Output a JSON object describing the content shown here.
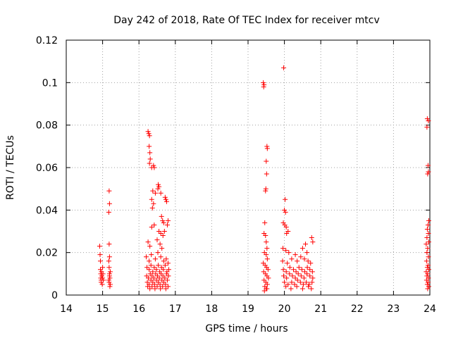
{
  "chart_data": {
    "type": "scatter",
    "title": "Day 242 of 2018, Rate Of TEC Index for receiver mtcv",
    "xlabel": "GPS time / hours",
    "ylabel": "ROTI / TECUs",
    "xlim": [
      14,
      24
    ],
    "ylim": [
      0,
      0.12
    ],
    "x_ticks": [
      "14",
      "15",
      "16",
      "17",
      "18",
      "19",
      "20",
      "21",
      "22",
      "23",
      "24"
    ],
    "y_ticks": [
      "0",
      "0.02",
      "0.04",
      "0.06",
      "0.08",
      "0.1",
      "0.12"
    ],
    "grid": true,
    "marker": "+",
    "colors": {
      "points": "#ff0000",
      "grid": "#a0a0a0",
      "axes": "#000000"
    },
    "series": [
      {
        "values": [
          [
            14.92,
            0.023
          ],
          [
            14.93,
            0.019
          ],
          [
            14.94,
            0.016
          ],
          [
            14.94,
            0.012
          ],
          [
            14.95,
            0.01
          ],
          [
            14.95,
            0.008
          ],
          [
            14.96,
            0.007
          ],
          [
            14.96,
            0.006
          ],
          [
            14.97,
            0.011
          ],
          [
            14.98,
            0.009
          ],
          [
            14.99,
            0.005
          ],
          [
            15.0,
            0.008
          ],
          [
            15.0,
            0.013
          ],
          [
            15.01,
            0.01
          ],
          [
            15.02,
            0.007
          ],
          [
            15.18,
            0.049
          ],
          [
            15.19,
            0.043
          ],
          [
            15.17,
            0.039
          ],
          [
            15.18,
            0.024
          ],
          [
            15.19,
            0.018
          ],
          [
            15.17,
            0.016
          ],
          [
            15.18,
            0.013
          ],
          [
            15.19,
            0.01
          ],
          [
            15.2,
            0.008
          ],
          [
            15.17,
            0.007
          ],
          [
            15.18,
            0.006
          ],
          [
            15.21,
            0.005
          ],
          [
            15.2,
            0.004
          ],
          [
            15.19,
            0.009
          ],
          [
            15.21,
            0.011
          ],
          [
            16.25,
            0.077
          ],
          [
            16.27,
            0.076
          ],
          [
            16.29,
            0.075
          ],
          [
            16.28,
            0.07
          ],
          [
            16.3,
            0.067
          ],
          [
            16.31,
            0.064
          ],
          [
            16.29,
            0.062
          ],
          [
            16.35,
            0.06
          ],
          [
            16.4,
            0.061
          ],
          [
            16.42,
            0.06
          ],
          [
            16.38,
            0.049
          ],
          [
            16.45,
            0.048
          ],
          [
            16.52,
            0.05
          ],
          [
            16.55,
            0.051
          ],
          [
            16.53,
            0.052
          ],
          [
            16.6,
            0.048
          ],
          [
            16.35,
            0.045
          ],
          [
            16.4,
            0.043
          ],
          [
            16.37,
            0.041
          ],
          [
            16.72,
            0.046
          ],
          [
            16.74,
            0.045
          ],
          [
            16.76,
            0.044
          ],
          [
            16.8,
            0.035
          ],
          [
            16.78,
            0.033
          ],
          [
            16.62,
            0.037
          ],
          [
            16.65,
            0.035
          ],
          [
            16.68,
            0.034
          ],
          [
            16.35,
            0.032
          ],
          [
            16.42,
            0.033
          ],
          [
            16.55,
            0.03
          ],
          [
            16.6,
            0.029
          ],
          [
            16.66,
            0.028
          ],
          [
            16.7,
            0.03
          ],
          [
            16.25,
            0.025
          ],
          [
            16.3,
            0.023
          ],
          [
            16.5,
            0.026
          ],
          [
            16.58,
            0.024
          ],
          [
            16.63,
            0.022
          ],
          [
            16.2,
            0.018
          ],
          [
            16.28,
            0.016
          ],
          [
            16.34,
            0.019
          ],
          [
            16.45,
            0.017
          ],
          [
            16.52,
            0.02
          ],
          [
            16.6,
            0.018
          ],
          [
            16.68,
            0.016
          ],
          [
            16.75,
            0.017
          ],
          [
            16.8,
            0.015
          ],
          [
            16.22,
            0.013
          ],
          [
            16.28,
            0.012
          ],
          [
            16.33,
            0.014
          ],
          [
            16.38,
            0.011
          ],
          [
            16.42,
            0.013
          ],
          [
            16.48,
            0.012
          ],
          [
            16.53,
            0.014
          ],
          [
            16.57,
            0.011
          ],
          [
            16.62,
            0.013
          ],
          [
            16.67,
            0.012
          ],
          [
            16.72,
            0.014
          ],
          [
            16.77,
            0.011
          ],
          [
            16.82,
            0.012
          ],
          [
            16.21,
            0.009
          ],
          [
            16.26,
            0.008
          ],
          [
            16.31,
            0.01
          ],
          [
            16.36,
            0.009
          ],
          [
            16.41,
            0.008
          ],
          [
            16.46,
            0.01
          ],
          [
            16.51,
            0.009
          ],
          [
            16.56,
            0.008
          ],
          [
            16.61,
            0.01
          ],
          [
            16.66,
            0.009
          ],
          [
            16.71,
            0.008
          ],
          [
            16.76,
            0.01
          ],
          [
            16.81,
            0.009
          ],
          [
            16.23,
            0.006
          ],
          [
            16.28,
            0.005
          ],
          [
            16.33,
            0.007
          ],
          [
            16.38,
            0.006
          ],
          [
            16.43,
            0.005
          ],
          [
            16.48,
            0.007
          ],
          [
            16.53,
            0.006
          ],
          [
            16.58,
            0.005
          ],
          [
            16.63,
            0.007
          ],
          [
            16.68,
            0.006
          ],
          [
            16.73,
            0.005
          ],
          [
            16.78,
            0.007
          ],
          [
            16.24,
            0.004
          ],
          [
            16.3,
            0.003
          ],
          [
            16.36,
            0.004
          ],
          [
            16.44,
            0.003
          ],
          [
            16.5,
            0.004
          ],
          [
            16.59,
            0.003
          ],
          [
            16.65,
            0.004
          ],
          [
            16.74,
            0.003
          ],
          [
            16.8,
            0.004
          ],
          [
            19.42,
            0.1
          ],
          [
            19.44,
            0.099
          ],
          [
            19.43,
            0.098
          ],
          [
            19.52,
            0.07
          ],
          [
            19.53,
            0.069
          ],
          [
            19.5,
            0.063
          ],
          [
            19.51,
            0.057
          ],
          [
            19.49,
            0.05
          ],
          [
            19.48,
            0.049
          ],
          [
            19.46,
            0.034
          ],
          [
            19.44,
            0.029
          ],
          [
            19.48,
            0.028
          ],
          [
            19.5,
            0.025
          ],
          [
            19.52,
            0.022
          ],
          [
            19.45,
            0.02
          ],
          [
            19.5,
            0.019
          ],
          [
            19.53,
            0.017
          ],
          [
            19.42,
            0.015
          ],
          [
            19.47,
            0.014
          ],
          [
            19.51,
            0.013
          ],
          [
            19.55,
            0.012
          ],
          [
            19.43,
            0.011
          ],
          [
            19.48,
            0.01
          ],
          [
            19.52,
            0.009
          ],
          [
            19.56,
            0.008
          ],
          [
            19.44,
            0.007
          ],
          [
            19.49,
            0.006
          ],
          [
            19.53,
            0.005
          ],
          [
            19.46,
            0.004
          ],
          [
            19.5,
            0.003
          ],
          [
            19.45,
            0.002
          ],
          [
            19.52,
            0.003
          ],
          [
            19.98,
            0.107
          ],
          [
            20.02,
            0.045
          ],
          [
            20.0,
            0.04
          ],
          [
            20.03,
            0.039
          ],
          [
            19.97,
            0.034
          ],
          [
            20.01,
            0.033
          ],
          [
            20.05,
            0.032
          ],
          [
            20.06,
            0.029
          ],
          [
            20.1,
            0.03
          ],
          [
            19.96,
            0.022
          ],
          [
            20.04,
            0.021
          ],
          [
            20.12,
            0.02
          ],
          [
            20.3,
            0.019
          ],
          [
            20.5,
            0.022
          ],
          [
            20.58,
            0.024
          ],
          [
            20.62,
            0.02
          ],
          [
            20.75,
            0.027
          ],
          [
            20.78,
            0.025
          ],
          [
            19.95,
            0.016
          ],
          [
            20.08,
            0.015
          ],
          [
            20.2,
            0.017
          ],
          [
            20.35,
            0.016
          ],
          [
            20.45,
            0.018
          ],
          [
            20.55,
            0.017
          ],
          [
            20.65,
            0.016
          ],
          [
            20.72,
            0.015
          ],
          [
            19.97,
            0.012
          ],
          [
            20.05,
            0.011
          ],
          [
            20.15,
            0.013
          ],
          [
            20.25,
            0.012
          ],
          [
            20.32,
            0.011
          ],
          [
            20.4,
            0.013
          ],
          [
            20.48,
            0.012
          ],
          [
            20.56,
            0.011
          ],
          [
            20.63,
            0.013
          ],
          [
            20.7,
            0.012
          ],
          [
            20.77,
            0.011
          ],
          [
            19.98,
            0.009
          ],
          [
            20.06,
            0.008
          ],
          [
            20.14,
            0.01
          ],
          [
            20.22,
            0.009
          ],
          [
            20.3,
            0.008
          ],
          [
            20.38,
            0.01
          ],
          [
            20.46,
            0.009
          ],
          [
            20.54,
            0.008
          ],
          [
            20.62,
            0.01
          ],
          [
            20.7,
            0.009
          ],
          [
            20.78,
            0.008
          ],
          [
            20.0,
            0.006
          ],
          [
            20.1,
            0.005
          ],
          [
            20.2,
            0.006
          ],
          [
            20.28,
            0.005
          ],
          [
            20.36,
            0.007
          ],
          [
            20.44,
            0.006
          ],
          [
            20.52,
            0.005
          ],
          [
            20.6,
            0.006
          ],
          [
            20.68,
            0.005
          ],
          [
            20.76,
            0.006
          ],
          [
            20.04,
            0.004
          ],
          [
            20.18,
            0.003
          ],
          [
            20.34,
            0.004
          ],
          [
            20.5,
            0.003
          ],
          [
            20.66,
            0.004
          ],
          [
            20.74,
            0.003
          ],
          [
            23.93,
            0.083
          ],
          [
            23.96,
            0.082
          ],
          [
            23.92,
            0.079
          ],
          [
            23.95,
            0.061
          ],
          [
            23.96,
            0.058
          ],
          [
            23.94,
            0.057
          ],
          [
            23.97,
            0.035
          ],
          [
            23.95,
            0.033
          ],
          [
            23.93,
            0.031
          ],
          [
            23.96,
            0.029
          ],
          [
            23.92,
            0.027
          ],
          [
            23.97,
            0.025
          ],
          [
            23.9,
            0.024
          ],
          [
            23.94,
            0.022
          ],
          [
            23.92,
            0.02
          ],
          [
            23.96,
            0.018
          ],
          [
            23.91,
            0.016
          ],
          [
            23.95,
            0.014
          ],
          [
            23.93,
            0.013
          ],
          [
            23.97,
            0.012
          ],
          [
            23.9,
            0.011
          ],
          [
            23.94,
            0.01
          ],
          [
            23.92,
            0.009
          ],
          [
            23.96,
            0.008
          ],
          [
            23.91,
            0.007
          ],
          [
            23.95,
            0.006
          ],
          [
            23.93,
            0.005
          ],
          [
            23.97,
            0.004
          ],
          [
            23.94,
            0.003
          ]
        ]
      }
    ]
  }
}
